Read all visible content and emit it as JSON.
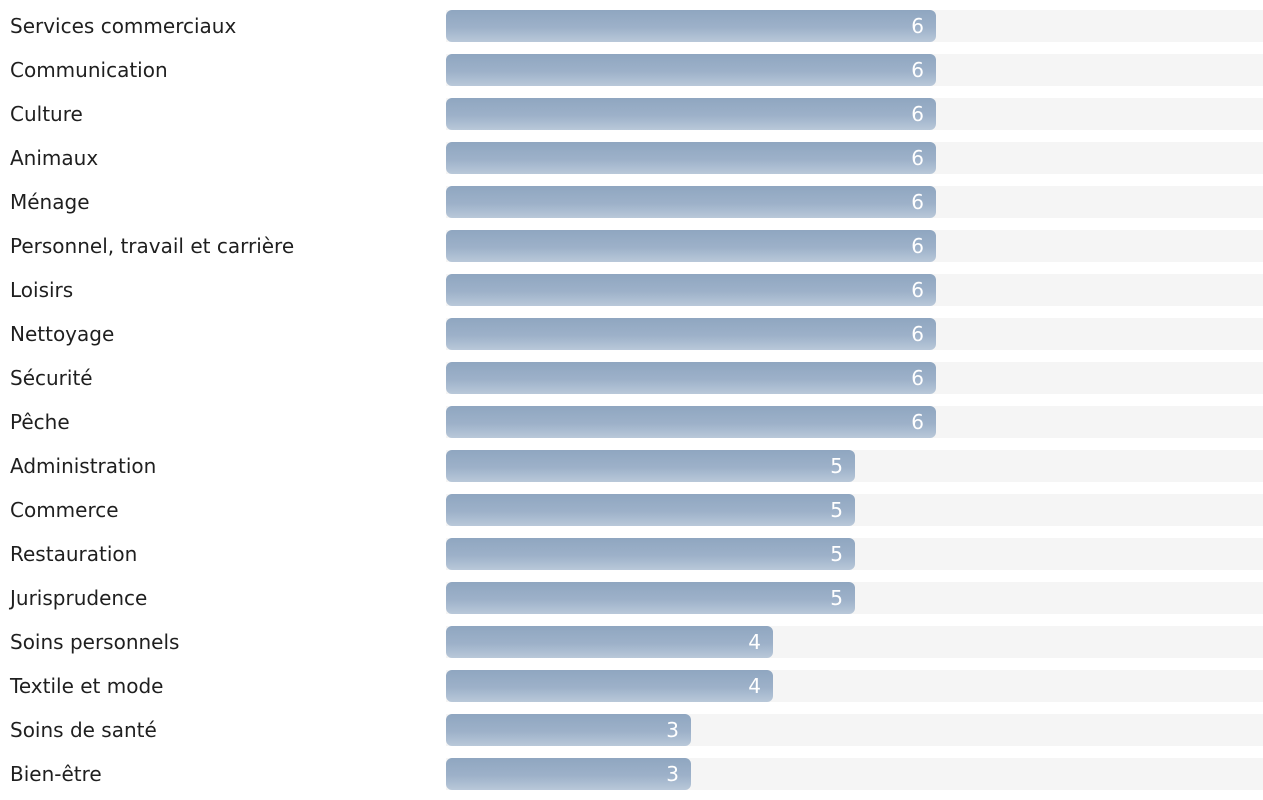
{
  "chart_data": {
    "type": "bar",
    "orientation": "horizontal",
    "categories": [
      "Services commerciaux",
      "Communication",
      "Culture",
      "Animaux",
      "Ménage",
      "Personnel, travail et carrière",
      "Loisirs",
      "Nettoyage",
      "Sécurité",
      "Pêche",
      "Administration",
      "Commerce",
      "Restauration",
      "Jurisprudence",
      "Soins personnels",
      "Textile et mode",
      "Soins de santé",
      "Bien-être"
    ],
    "values": [
      6,
      6,
      6,
      6,
      6,
      6,
      6,
      6,
      6,
      6,
      5,
      5,
      5,
      5,
      4,
      4,
      3,
      3
    ],
    "xlim": [
      0,
      10
    ],
    "grid": false,
    "colors": {
      "bar_top": "#8fa6c0",
      "bar_bottom": "#b9c8d9",
      "track": "#f5f5f5",
      "value_text": "#ffffff",
      "label_text": "#1f1f1f"
    }
  }
}
